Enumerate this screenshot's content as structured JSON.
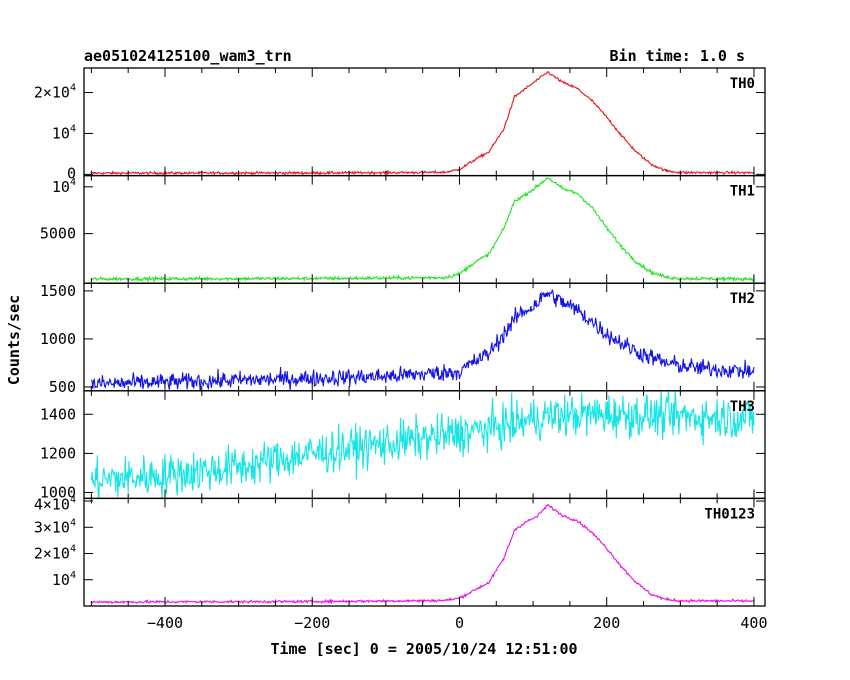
{
  "header": {
    "title": "ae051024125100_wam3_trn",
    "bin_time": "Bin time: 1.0 s"
  },
  "chart_data": {
    "type": "line",
    "ylabel": "Counts/sec",
    "xlabel": "Time [sec] 0 = 2005/10/24 12:51:00",
    "xlim": [
      -510,
      415
    ],
    "x_ticks": [
      {
        "value": -400,
        "label": "−400"
      },
      {
        "value": -200,
        "label": "−200"
      },
      {
        "value": 0,
        "label": "0"
      },
      {
        "value": 200,
        "label": "200"
      },
      {
        "value": 400,
        "label": "400"
      }
    ],
    "panels": [
      {
        "name": "TH0",
        "color": "#e8141e",
        "ylim": [
          -300,
          26000
        ],
        "noise": 150,
        "y_ticks": [
          {
            "value": 0,
            "base": "0",
            "exp": ""
          },
          {
            "value": 10000,
            "base": "10",
            "exp": "4"
          },
          {
            "value": 20000,
            "base": "2×10",
            "exp": "4"
          }
        ],
        "knots": [
          [
            -500,
            300
          ],
          [
            -200,
            350
          ],
          [
            -20,
            500
          ],
          [
            0,
            1200
          ],
          [
            20,
            3500
          ],
          [
            40,
            5500
          ],
          [
            60,
            11000
          ],
          [
            75,
            19000
          ],
          [
            90,
            21000
          ],
          [
            105,
            23000
          ],
          [
            120,
            25000
          ],
          [
            140,
            22500
          ],
          [
            160,
            21000
          ],
          [
            180,
            18000
          ],
          [
            200,
            14000
          ],
          [
            220,
            9500
          ],
          [
            240,
            5500
          ],
          [
            260,
            2500
          ],
          [
            280,
            900
          ],
          [
            300,
            450
          ],
          [
            400,
            400
          ]
        ]
      },
      {
        "name": "TH1",
        "color": "#1ee61e",
        "ylim": [
          -300,
          11200
        ],
        "noise": 90,
        "y_ticks": [
          {
            "value": 5000,
            "base": "5000",
            "exp": ""
          },
          {
            "value": 10000,
            "base": "10",
            "exp": "4"
          }
        ],
        "knots": [
          [
            -500,
            150
          ],
          [
            -200,
            200
          ],
          [
            -20,
            300
          ],
          [
            0,
            700
          ],
          [
            20,
            1900
          ],
          [
            40,
            2800
          ],
          [
            60,
            5500
          ],
          [
            75,
            8500
          ],
          [
            90,
            9200
          ],
          [
            105,
            10000
          ],
          [
            120,
            11000
          ],
          [
            140,
            9800
          ],
          [
            160,
            9300
          ],
          [
            180,
            7800
          ],
          [
            200,
            5600
          ],
          [
            220,
            3600
          ],
          [
            240,
            2000
          ],
          [
            260,
            900
          ],
          [
            280,
            350
          ],
          [
            300,
            200
          ],
          [
            400,
            150
          ]
        ]
      },
      {
        "name": "TH2",
        "color": "#1414e6",
        "ylim": [
          460,
          1580
        ],
        "noise": 45,
        "y_ticks": [
          {
            "value": 500,
            "base": "500",
            "exp": ""
          },
          {
            "value": 1000,
            "base": "1000",
            "exp": ""
          },
          {
            "value": 1500,
            "base": "1500",
            "exp": ""
          }
        ],
        "knots": [
          [
            -500,
            530
          ],
          [
            -300,
            570
          ],
          [
            -100,
            610
          ],
          [
            0,
            660
          ],
          [
            20,
            760
          ],
          [
            40,
            850
          ],
          [
            60,
            1050
          ],
          [
            80,
            1250
          ],
          [
            100,
            1340
          ],
          [
            120,
            1480
          ],
          [
            140,
            1380
          ],
          [
            160,
            1300
          ],
          [
            180,
            1180
          ],
          [
            200,
            1050
          ],
          [
            240,
            870
          ],
          [
            280,
            750
          ],
          [
            320,
            700
          ],
          [
            400,
            660
          ]
        ]
      },
      {
        "name": "TH3",
        "color": "#14e6e6",
        "ylim": [
          970,
          1520
        ],
        "noise": 55,
        "y_ticks": [
          {
            "value": 1000,
            "base": "1000",
            "exp": ""
          },
          {
            "value": 1200,
            "base": "1200",
            "exp": ""
          },
          {
            "value": 1400,
            "base": "1400",
            "exp": ""
          }
        ],
        "knots": [
          [
            -500,
            1060
          ],
          [
            -400,
            1090
          ],
          [
            -300,
            1130
          ],
          [
            -200,
            1200
          ],
          [
            -100,
            1250
          ],
          [
            0,
            1300
          ],
          [
            60,
            1340
          ],
          [
            120,
            1390
          ],
          [
            200,
            1400
          ],
          [
            300,
            1390
          ],
          [
            400,
            1380
          ]
        ]
      },
      {
        "name": "TH0123",
        "color": "#e614e6",
        "ylim": [
          0,
          41000
        ],
        "noise": 250,
        "y_ticks": [
          {
            "value": 10000,
            "base": "10",
            "exp": "4"
          },
          {
            "value": 20000,
            "base": "2×10",
            "exp": "4"
          },
          {
            "value": 30000,
            "base": "3×10",
            "exp": "4"
          },
          {
            "value": 40000,
            "base": "4×10",
            "exp": "4"
          }
        ],
        "knots": [
          [
            -500,
            1500
          ],
          [
            -200,
            1700
          ],
          [
            -20,
            2100
          ],
          [
            0,
            3000
          ],
          [
            20,
            6000
          ],
          [
            40,
            9000
          ],
          [
            60,
            18000
          ],
          [
            75,
            29000
          ],
          [
            90,
            32000
          ],
          [
            105,
            34000
          ],
          [
            120,
            38500
          ],
          [
            140,
            34500
          ],
          [
            160,
            32500
          ],
          [
            180,
            28000
          ],
          [
            200,
            22000
          ],
          [
            220,
            15000
          ],
          [
            240,
            9000
          ],
          [
            260,
            4500
          ],
          [
            280,
            2500
          ],
          [
            300,
            2000
          ],
          [
            400,
            1900
          ]
        ]
      }
    ]
  }
}
